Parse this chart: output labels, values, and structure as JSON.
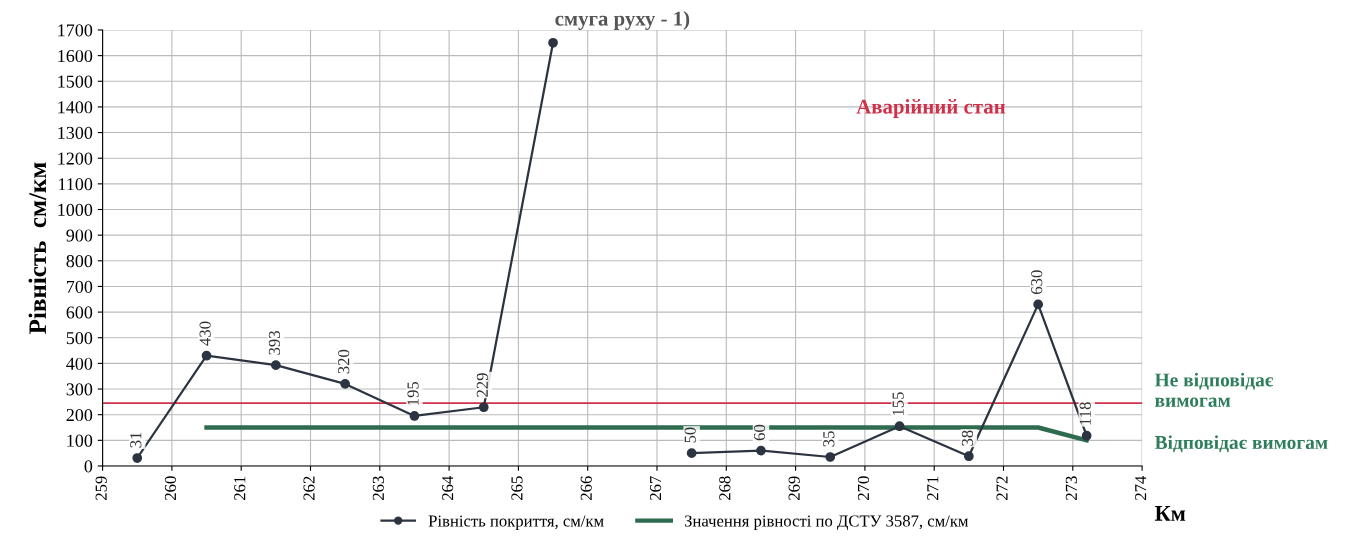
{
  "chart_data": {
    "type": "line",
    "title": "смуга руху - 1)",
    "xlabel": "Км",
    "ylabel": "Рівність  см/км",
    "series": [
      {
        "name": "Рівність покриття, см/км",
        "color": "#2b3440",
        "marker": "circle",
        "x": [
          259.5,
          260.5,
          261.5,
          262.5,
          263.5,
          264.5,
          265.5,
          266.5,
          267.5,
          268.5,
          269.5,
          270.5,
          271.5,
          272.5,
          273.2
        ],
        "values": [
          31,
          430,
          393,
          320,
          195,
          229,
          1650,
          null,
          50,
          60,
          35,
          155,
          38,
          630,
          118
        ],
        "value_labels": [
          "31",
          "430",
          "393",
          "320",
          "195",
          "229",
          null,
          null,
          "50",
          "60",
          "35",
          "155",
          "38",
          "630",
          "118"
        ]
      },
      {
        "name": "Значення рівності по ДСТУ 3587, см/км",
        "color": "#2e6b4f",
        "marker": "none",
        "x": [
          260.5,
          272.5,
          273.2
        ],
        "values": [
          150,
          150,
          100
        ]
      }
    ],
    "ref_lines": [
      {
        "axis": "y",
        "value": 245,
        "label": "Аварійний стан",
        "color": "#d0304a"
      }
    ],
    "annotations": [
      "Не відповідає вимогам",
      "Відповідає вимогам"
    ],
    "xlim": [
      259,
      274
    ],
    "xticks": [
      259,
      260,
      261,
      262,
      263,
      264,
      265,
      266,
      267,
      268,
      269,
      270,
      271,
      272,
      273,
      274
    ],
    "ylim": [
      0,
      1700
    ],
    "yticks": [
      0,
      100,
      200,
      300,
      400,
      500,
      600,
      700,
      800,
      900,
      1000,
      1100,
      1200,
      1300,
      1400,
      1500,
      1600,
      1700
    ],
    "grid": true,
    "legend": "bottom",
    "line_style": "solid"
  }
}
